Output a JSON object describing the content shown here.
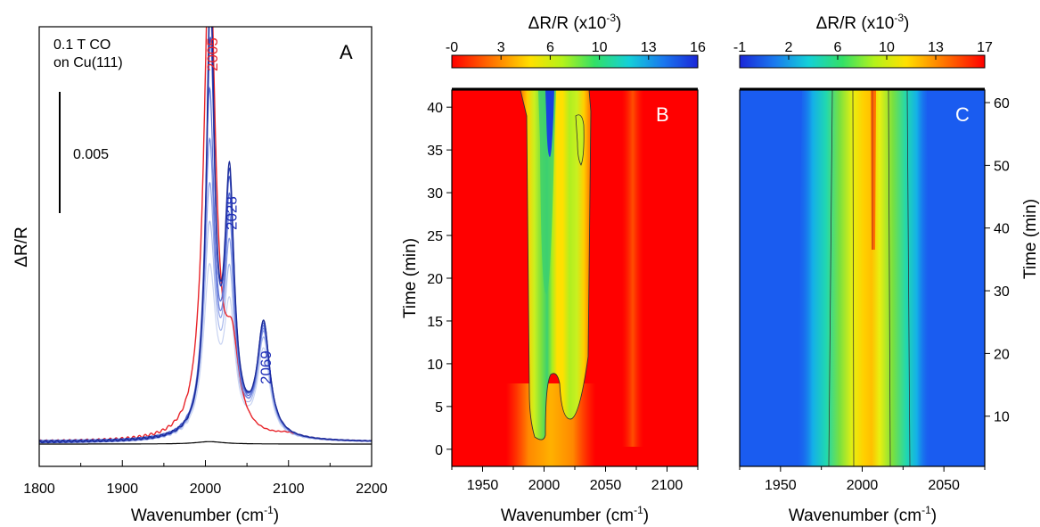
{
  "chart_data": [
    {
      "panel": "A",
      "type": "line",
      "panel_label": "A",
      "xlabel": "Wavenumber (cm",
      "xlabel_sup": "-1",
      "xlabel_end": ")",
      "ylabel": "ΔR/R",
      "xlim": [
        1800,
        2200
      ],
      "xticks": [
        "1800",
        "1900",
        "2000",
        "2100",
        "2200"
      ],
      "annotation_lines": [
        "0.1 T CO",
        "on Cu(111)"
      ],
      "scale_bar_label": "0.005",
      "scale_bar_value": 0.005,
      "peak_labels": [
        {
          "text": "2005",
          "x": 2005,
          "color": "#e8242a"
        },
        {
          "text": "2028",
          "x": 2028,
          "color": "#1f2fb8"
        },
        {
          "text": "2069",
          "x": 2069,
          "color": "#1f2fb8"
        }
      ],
      "series": [
        {
          "role": "reference",
          "color": "#000000",
          "peaks": [
            [
              2005,
              0.0001,
              20
            ]
          ],
          "baseline": 0
        },
        {
          "role": "gas-phase",
          "color": "#e8242a",
          "peaks": [
            [
              2005,
              0.0202,
              8.5
            ],
            [
              2032,
              0.0032,
              10
            ],
            [
              2100,
              0.0002,
              20
            ]
          ]
        },
        {
          "role": "time-series",
          "color": "#c9d4f2",
          "peaks": [
            [
              2005,
              0.0068,
              9
            ],
            [
              2029,
              0.005,
              8
            ],
            [
              2070,
              0.0036,
              9
            ]
          ]
        },
        {
          "role": "time-series",
          "color": "#a9b9ec",
          "peaks": [
            [
              2005,
              0.0085,
              8.5
            ],
            [
              2029,
              0.0062,
              7.5
            ],
            [
              2070,
              0.004,
              9
            ]
          ]
        },
        {
          "role": "time-series",
          "color": "#8ea0e6",
          "peaks": [
            [
              2005,
              0.01,
              8
            ],
            [
              2029,
              0.0072,
              7.5
            ],
            [
              2070,
              0.0042,
              9
            ]
          ]
        },
        {
          "role": "time-series",
          "color": "#7488de",
          "peaks": [
            [
              2005,
              0.0118,
              7.5
            ],
            [
              2029,
              0.0082,
              7
            ],
            [
              2070,
              0.0043,
              9
            ]
          ]
        },
        {
          "role": "time-series",
          "color": "#5a6fd4",
          "peaks": [
            [
              2005,
              0.0138,
              7
            ],
            [
              2029,
              0.009,
              7
            ],
            [
              2070,
              0.0044,
              9
            ]
          ]
        },
        {
          "role": "time-series",
          "color": "#3f56c8",
          "peaks": [
            [
              2006,
              0.0158,
              6.5
            ],
            [
              2029,
              0.0096,
              7
            ],
            [
              2070,
              0.0045,
              9
            ]
          ]
        },
        {
          "role": "time-series",
          "color": "#2a3fb4",
          "peaks": [
            [
              2006,
              0.0172,
              6
            ],
            [
              2029,
              0.01,
              7
            ],
            [
              2070,
              0.0046,
              9
            ]
          ]
        },
        {
          "role": "time-series",
          "color": "#1b2a96",
          "peaks": [
            [
              2006,
              0.018,
              6
            ],
            [
              2029,
              0.0102,
              7
            ],
            [
              2070,
              0.0046,
              9
            ]
          ]
        }
      ]
    },
    {
      "panel": "B",
      "type": "heatmap",
      "panel_label": "B",
      "xlabel": "Wavenumber (cm",
      "xlabel_sup": "-1",
      "xlabel_end": ")",
      "ylabel": "Time (min)",
      "xlim": [
        1925,
        2125
      ],
      "ylim": [
        -2,
        42
      ],
      "xticks": [
        "1950",
        "2000",
        "2050",
        "2100"
      ],
      "yticks": [
        "0",
        "5",
        "10",
        "15",
        "20",
        "25",
        "30",
        "35",
        "40"
      ],
      "colorbar": {
        "title": "ΔR/R (x10",
        "title_sup": "-3",
        "title_end": ")",
        "ticks": [
          "-0",
          "3",
          "6",
          "10",
          "13",
          "16"
        ],
        "range": [
          -0.3,
          16
        ],
        "palette": "red-to-blue"
      }
    },
    {
      "panel": "C",
      "type": "heatmap",
      "panel_label": "C",
      "xlabel": "Wavenumber (cm",
      "xlabel_sup": "-1",
      "xlabel_end": ")",
      "ylabel": "Time (min)",
      "xlim": [
        1925,
        2075
      ],
      "ylim": [
        2,
        62
      ],
      "xticks": [
        "1950",
        "2000",
        "2050"
      ],
      "yticks": [
        "10",
        "20",
        "30",
        "40",
        "50",
        "60"
      ],
      "colorbar": {
        "title": "ΔR/R (x10",
        "title_sup": "-3",
        "title_end": ")",
        "ticks": [
          "-1",
          "2",
          "6",
          "10",
          "13",
          "17"
        ],
        "range": [
          -1,
          17
        ],
        "palette": "blue-to-red"
      }
    }
  ]
}
